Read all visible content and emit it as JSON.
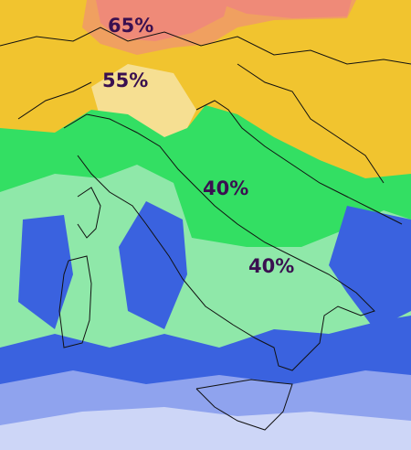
{
  "labels": [
    "65%",
    "55%",
    "40%",
    "40%"
  ]
}
